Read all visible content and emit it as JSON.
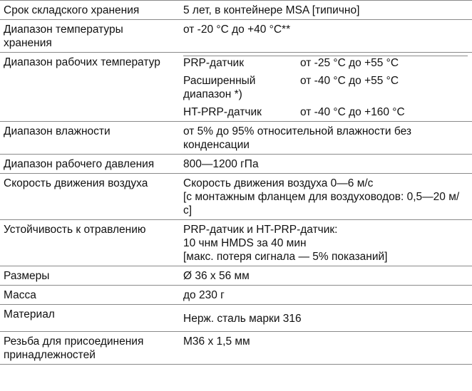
{
  "rows": [
    {
      "name": "Срок складского хранения",
      "value": [
        "5 лет, в контейнере MSA [типично]"
      ]
    },
    {
      "name": "Диапазон температуры хранения",
      "value": [
        "от -20 °C до +40 °C**"
      ]
    },
    {
      "name": "Диапазон рабочих температур",
      "sub": [
        {
          "label": "PRP-датчик",
          "value": "от -25 °C до +55 °C"
        },
        {
          "label": "Расширенный диапазон *)",
          "value": "от -40 °C до +55 °C"
        },
        {
          "label": "HT-PRP-датчик",
          "value": "от -40 °C до +160 °C"
        }
      ]
    },
    {
      "name": "Диапазон влажности",
      "value": [
        "от 5% до 95% относительной влажности без конденсации"
      ]
    },
    {
      "name": "Диапазон рабочего давления",
      "value": [
        "800—1200 гПа"
      ]
    },
    {
      "name": "Скорость движения воздуха",
      "value": [
        "Скорость движения воздуха 0—6 м/с",
        "[с монтажным фланцем для воздуховодов: 0,5—20 м/с]"
      ]
    },
    {
      "name": "Устойчивость к отравлению",
      "value": [
        "PRP-датчик и HT-PRP-датчик:",
        "10 чнм HMDS за 40 мин",
        "[макс. потеря сигнала — 5% показаний]"
      ]
    },
    {
      "name": "Размеры",
      "value": [
        "Ø 36 x 56 мм"
      ]
    },
    {
      "name": "Масса",
      "value": [
        "до 230 г"
      ]
    },
    {
      "name": "Материал",
      "value": [
        "Нерж. сталь марки 316"
      ]
    },
    {
      "name": "Резьба для присоединения принадлежностей",
      "value": [
        "M36 x 1,5 мм"
      ]
    }
  ]
}
